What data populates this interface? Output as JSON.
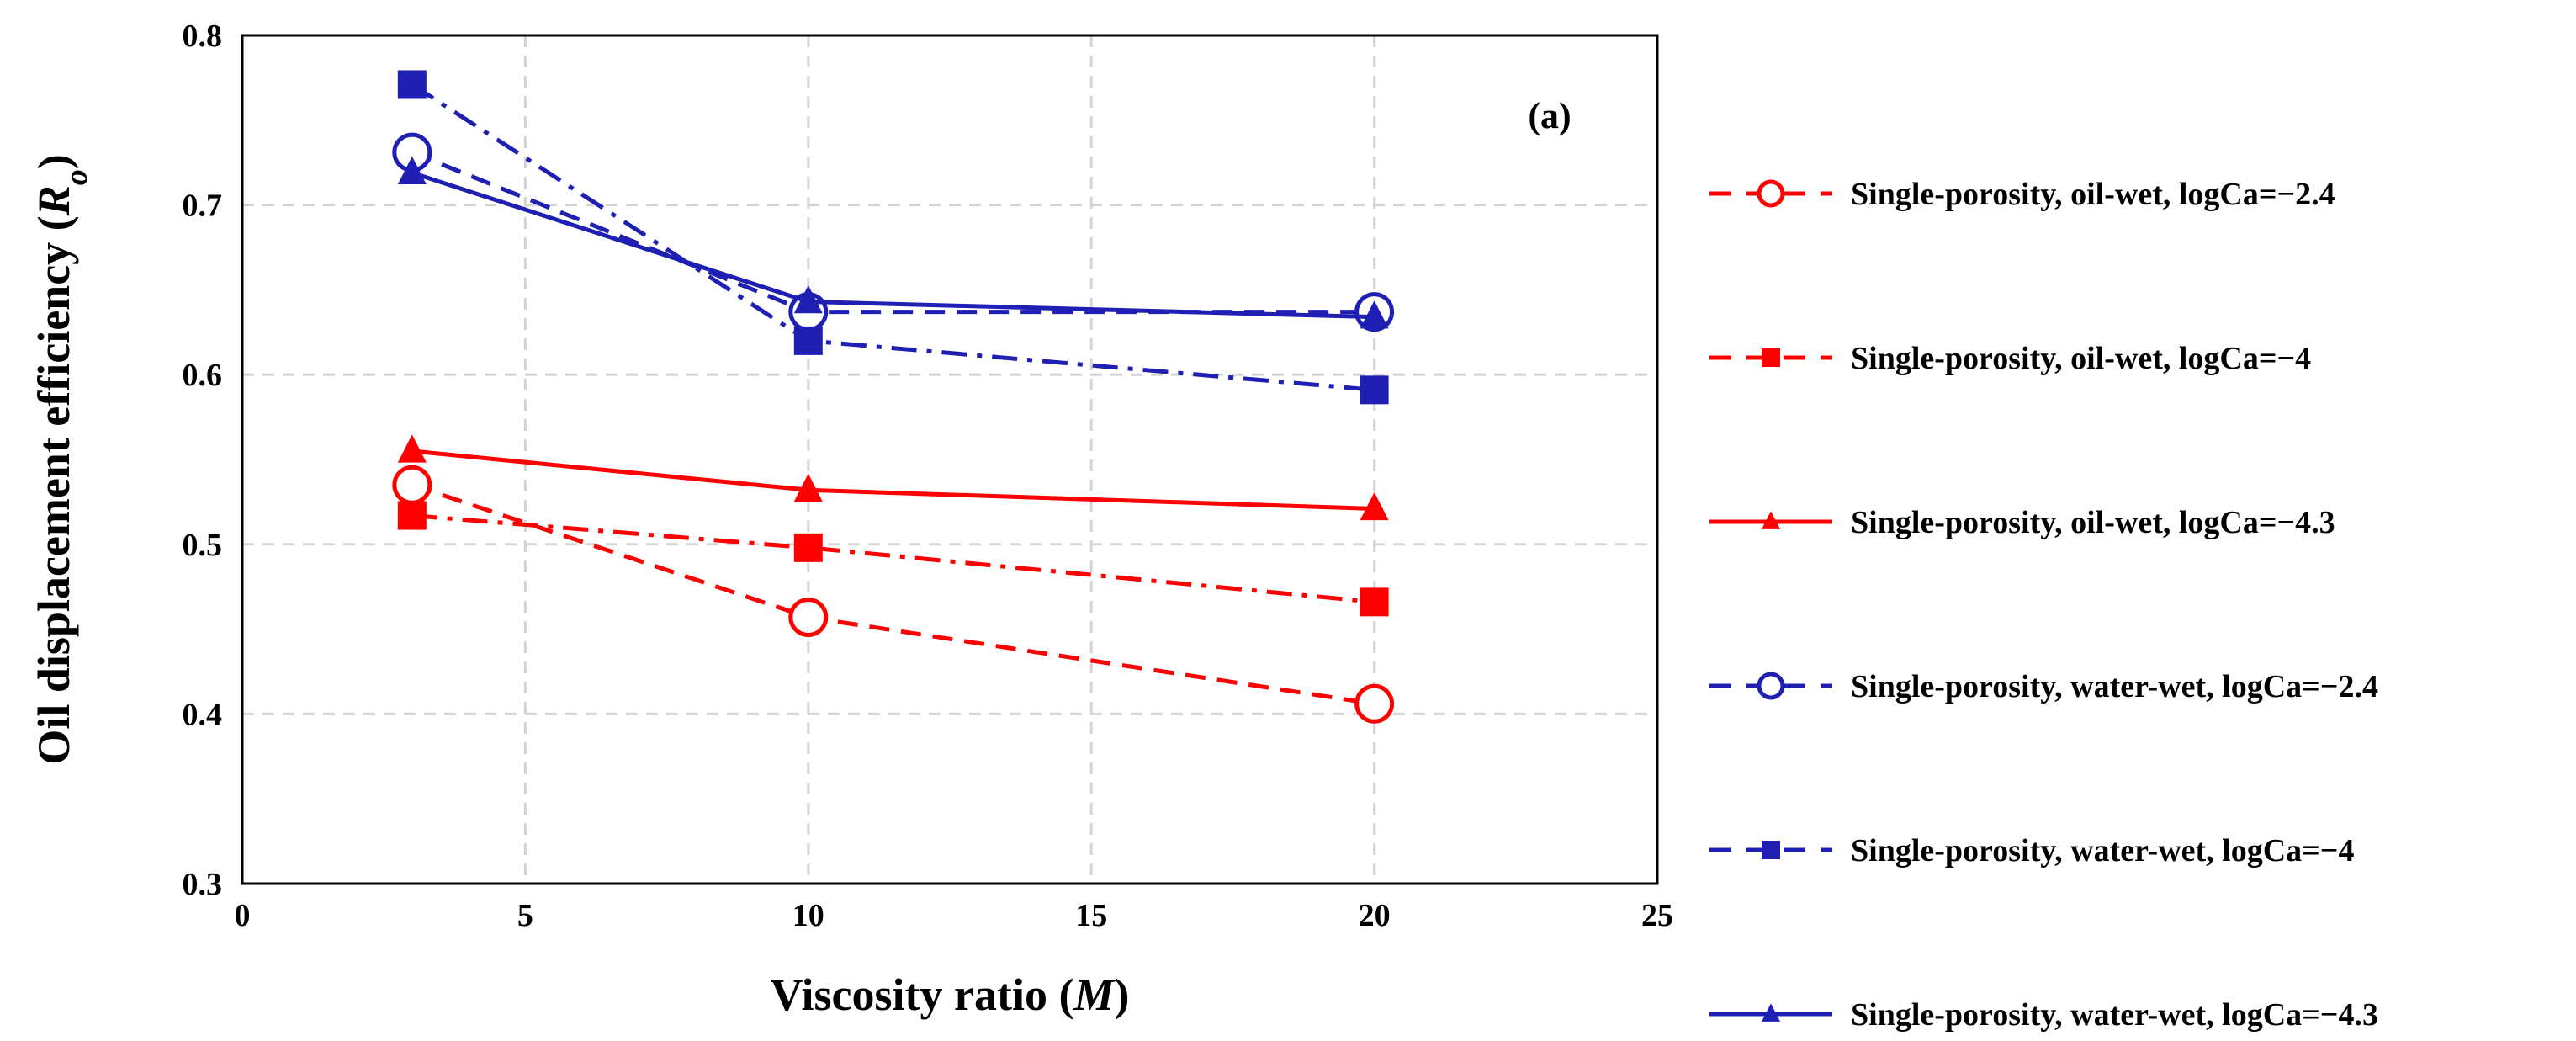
{
  "chart_data": {
    "type": "line",
    "panel_label": "(a)",
    "xlabel": {
      "prefix": "Viscosity ratio (",
      "var": "M",
      "suffix": ")"
    },
    "ylabel": {
      "prefix": "Oil displacement efficiency (",
      "var": "R",
      "sub": "o",
      "suffix": ")"
    },
    "xlim": [
      0,
      25
    ],
    "ylim": [
      0.3,
      0.8
    ],
    "xticks": [
      0,
      5,
      10,
      15,
      20,
      25
    ],
    "yticks": [
      0.3,
      0.4,
      0.5,
      0.6,
      0.7,
      0.8
    ],
    "xtick_labels": [
      "0",
      "5",
      "10",
      "15",
      "20",
      "25"
    ],
    "ytick_labels": [
      "0.3",
      "0.4",
      "0.5",
      "0.6",
      "0.7",
      "0.8"
    ],
    "grid": true,
    "legend_position": "right",
    "colors": {
      "red": "#ff0000",
      "blue": "#1f1fb4"
    },
    "series": [
      {
        "name": "Single-porosity, oil-wet, logCa=−2.4",
        "color": "#ff0000",
        "dash": "dashed",
        "marker": "circle-open",
        "x": [
          3,
          10,
          20
        ],
        "y": [
          0.535,
          0.457,
          0.406
        ]
      },
      {
        "name": "Single-porosity, oil-wet, logCa=−4",
        "color": "#ff0000",
        "dash": "dashdot",
        "marker": "square",
        "x": [
          3,
          10,
          20
        ],
        "y": [
          0.517,
          0.498,
          0.466
        ]
      },
      {
        "name": "Single-porosity, oil-wet, logCa=−4.3",
        "color": "#ff0000",
        "dash": "solid",
        "marker": "triangle",
        "x": [
          3,
          10,
          20
        ],
        "y": [
          0.555,
          0.532,
          0.521
        ]
      },
      {
        "name": "Single-porosity, water-wet, logCa=−2.4",
        "color": "#1f1fb4",
        "dash": "dashed",
        "marker": "circle-open",
        "x": [
          3,
          10,
          20
        ],
        "y": [
          0.731,
          0.637,
          0.637
        ]
      },
      {
        "name": "Single-porosity, water-wet, logCa=−4",
        "color": "#1f1fb4",
        "dash": "dashdot",
        "marker": "square",
        "x": [
          3,
          10,
          20
        ],
        "y": [
          0.771,
          0.62,
          0.591
        ]
      },
      {
        "name": "Single-porosity, water-wet, logCa=−4.3",
        "color": "#1f1fb4",
        "dash": "solid",
        "marker": "triangle",
        "x": [
          3,
          10,
          20
        ],
        "y": [
          0.719,
          0.643,
          0.634
        ]
      }
    ]
  }
}
